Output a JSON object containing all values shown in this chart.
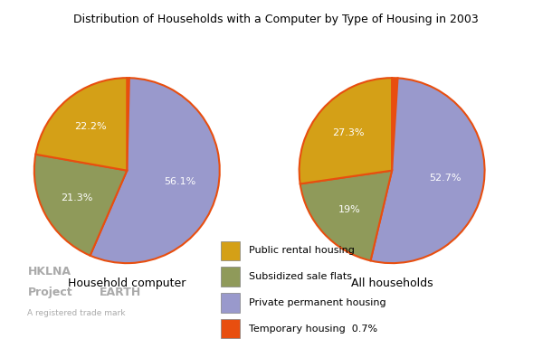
{
  "title": "Distribution of Households with a Computer by Type of Housing in 2003",
  "pie1_label": "Household computer",
  "pie2_label": "All households",
  "colors": [
    "#d4a017",
    "#8f9a5a",
    "#9999cc",
    "#e84e0f"
  ],
  "edge_color": "#e84e0f",
  "legend_labels": [
    "Public rental housing",
    "Subsidized sale flats",
    "Private permanent housing",
    "Temporary housing  0.7%"
  ],
  "pie1_vals": [
    0.4,
    56.1,
    21.3,
    22.2
  ],
  "pie2_vals": [
    1.0,
    52.7,
    19.0,
    27.3
  ],
  "pie1_pcts": [
    "",
    "56.1%",
    "21.3%",
    "22.2%"
  ],
  "pie2_pcts": [
    "",
    "52.7%",
    "19%",
    "27.3%"
  ],
  "pie1_label_r": [
    0,
    0.58,
    0.62,
    0.62
  ],
  "pie2_label_r": [
    0,
    0.58,
    0.62,
    0.62
  ],
  "title_fontsize": 9,
  "pie_label_fontsize": 9,
  "pct_fontsize": 8,
  "legend_fontsize": 8
}
